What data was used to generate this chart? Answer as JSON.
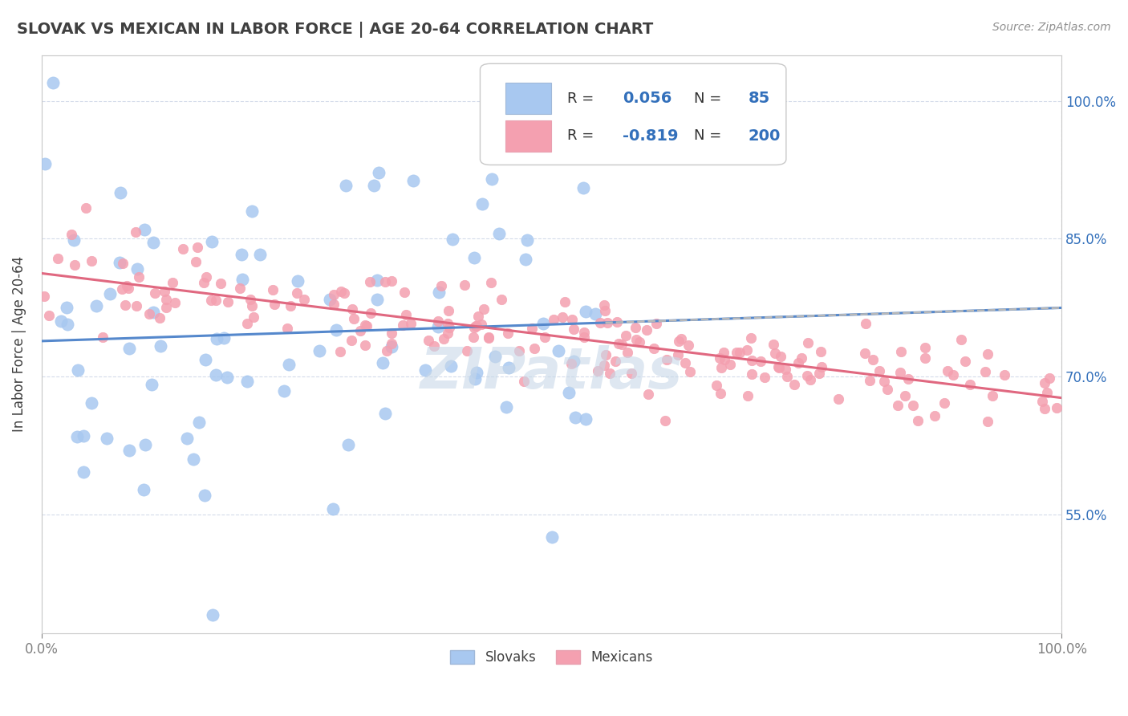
{
  "title": "SLOVAK VS MEXICAN IN LABOR FORCE | AGE 20-64 CORRELATION CHART",
  "source": "Source: ZipAtlas.com",
  "ylabel": "In Labor Force | Age 20-64",
  "xlim": [
    0.0,
    1.0
  ],
  "ylim": [
    0.42,
    1.05
  ],
  "y_tick_positions": [
    0.55,
    0.7,
    0.85,
    1.0
  ],
  "y_tick_labels": [
    "55.0%",
    "70.0%",
    "85.0%",
    "100.0%"
  ],
  "slovak_R": 0.056,
  "slovak_N": 85,
  "mexican_R": -0.819,
  "mexican_N": 200,
  "slovak_color": "#a8c8f0",
  "mexican_color": "#f4a0b0",
  "slovak_line_color": "#5588cc",
  "mexican_line_color": "#e06880",
  "trend_line_color": "#b8b8b8",
  "background_color": "#ffffff",
  "grid_color": "#d0d8e8",
  "title_color": "#404040",
  "legend_R_color": "#3370bb",
  "watermark_color": "#c8d8e8",
  "slovak_seed": 42,
  "mexican_seed": 123
}
